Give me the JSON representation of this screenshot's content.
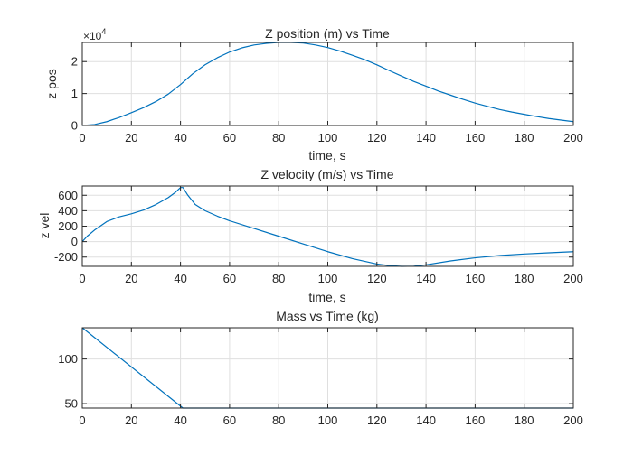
{
  "chart_data": [
    {
      "type": "line",
      "title": "Z position (m) vs Time",
      "xlabel": "time, s",
      "ylabel": "z pos",
      "xlim": [
        0,
        200
      ],
      "ylim": [
        0,
        2.6
      ],
      "xticks": [
        0,
        20,
        40,
        60,
        80,
        100,
        120,
        140,
        160,
        180,
        200
      ],
      "yticks": [
        0,
        1,
        2
      ],
      "y_exponent_label": "×10",
      "y_exponent_power": "4",
      "grid": true,
      "line_color": "#0072bd",
      "series": [
        {
          "x": [
            0,
            5,
            10,
            15,
            20,
            25,
            30,
            35,
            40,
            45,
            50,
            55,
            60,
            65,
            70,
            75,
            80,
            85,
            90,
            95,
            100,
            105,
            110,
            115,
            120,
            125,
            130,
            135,
            140,
            145,
            150,
            155,
            160,
            165,
            170,
            175,
            180,
            185,
            190,
            195,
            200
          ],
          "y": [
            0,
            0.03,
            0.12,
            0.25,
            0.4,
            0.56,
            0.75,
            0.98,
            1.28,
            1.62,
            1.9,
            2.12,
            2.3,
            2.43,
            2.52,
            2.57,
            2.6,
            2.6,
            2.58,
            2.52,
            2.44,
            2.33,
            2.2,
            2.06,
            1.9,
            1.72,
            1.55,
            1.38,
            1.23,
            1.08,
            0.95,
            0.82,
            0.7,
            0.6,
            0.5,
            0.42,
            0.35,
            0.28,
            0.22,
            0.17,
            0.12
          ]
        }
      ]
    },
    {
      "type": "line",
      "title": "Z velocity (m/s) vs Time",
      "xlabel": "time, s",
      "ylabel": "z vel",
      "xlim": [
        0,
        200
      ],
      "ylim": [
        -320,
        720
      ],
      "xticks": [
        0,
        20,
        40,
        60,
        80,
        100,
        120,
        140,
        160,
        180,
        200
      ],
      "yticks": [
        -200,
        0,
        200,
        400,
        600
      ],
      "grid": true,
      "line_color": "#0072bd",
      "series": [
        {
          "x": [
            0,
            2,
            5,
            10,
            15,
            20,
            25,
            30,
            35,
            38,
            40,
            41,
            43,
            46,
            50,
            55,
            60,
            70,
            80,
            90,
            100,
            110,
            120,
            125,
            130,
            135,
            140,
            150,
            160,
            170,
            180,
            190,
            200
          ],
          "y": [
            0,
            70,
            150,
            260,
            320,
            360,
            410,
            480,
            570,
            640,
            700,
            700,
            600,
            480,
            400,
            330,
            270,
            170,
            70,
            -30,
            -130,
            -220,
            -290,
            -310,
            -320,
            -318,
            -300,
            -250,
            -210,
            -180,
            -160,
            -145,
            -130
          ]
        }
      ]
    },
    {
      "type": "line",
      "title": "Mass vs Time (kg)",
      "xlabel": "",
      "ylabel": "",
      "xlim": [
        0,
        200
      ],
      "ylim": [
        45,
        135
      ],
      "xticks": [
        0,
        20,
        40,
        60,
        80,
        100,
        120,
        140,
        160,
        180,
        200
      ],
      "yticks": [
        50,
        100
      ],
      "grid": true,
      "line_color": "#0072bd",
      "series": [
        {
          "x": [
            0,
            41,
            200
          ],
          "y": [
            135,
            45,
            45
          ]
        }
      ]
    }
  ]
}
